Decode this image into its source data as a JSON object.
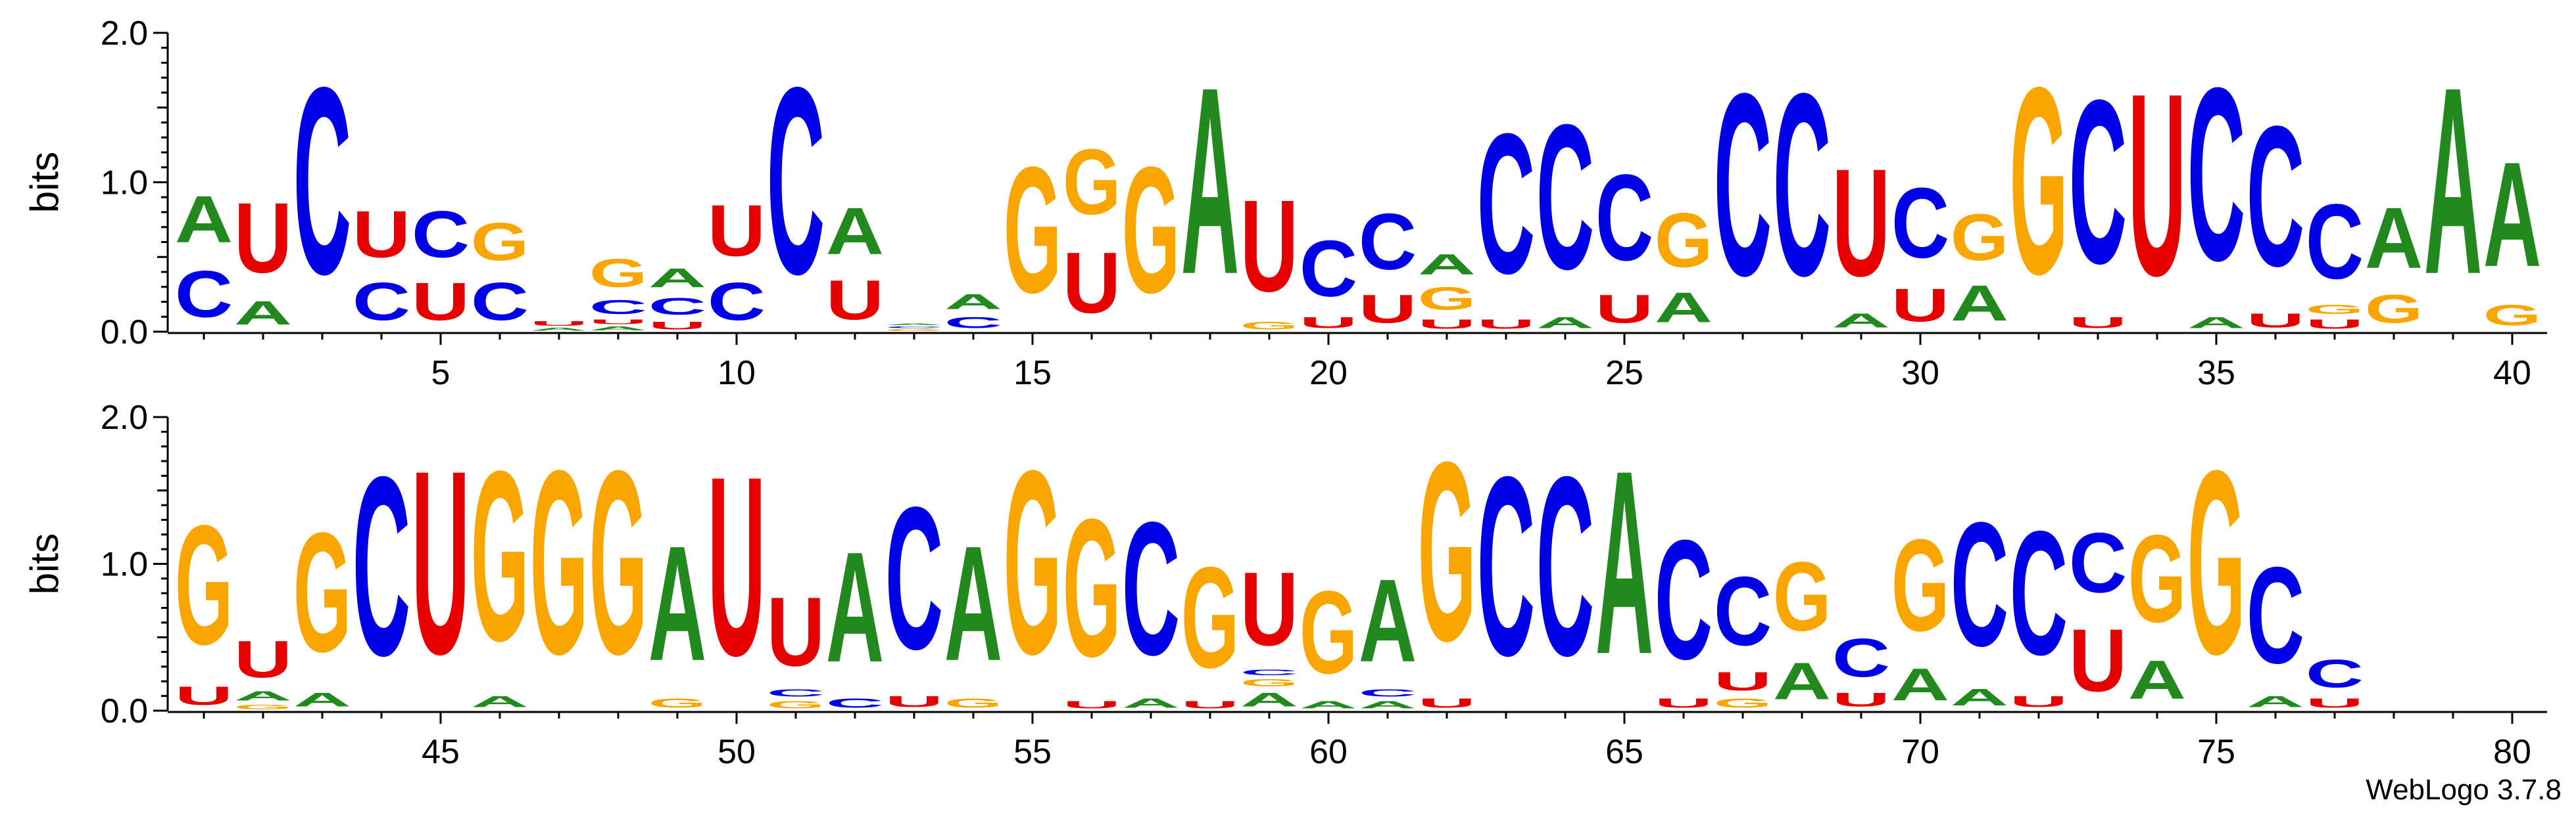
{
  "chart_data": {
    "type": "sequence-logo",
    "ylabel": "bits",
    "ylim": [
      0,
      2
    ],
    "yticks": [
      "0.0",
      "1.0",
      "2.0"
    ],
    "colors": {
      "A": "#21891d",
      "C": "#0000e6",
      "G": "#f9a600",
      "U": "#e60000"
    },
    "rows": [
      {
        "positions": [
          [
            [
              "C",
              0.5
            ],
            [
              "A",
              0.5
            ]
          ],
          [
            [
              "A",
              0.25
            ],
            [
              "U",
              0.75
            ]
          ],
          [
            [
              "C",
              2.0
            ]
          ],
          [
            [
              "C",
              0.4
            ],
            [
              "U",
              0.5
            ]
          ],
          [
            [
              "U",
              0.4
            ],
            [
              "C",
              0.5
            ]
          ],
          [
            [
              "C",
              0.4
            ],
            [
              "G",
              0.4
            ]
          ],
          [
            [
              "A",
              0.03
            ],
            [
              "U",
              0.05
            ]
          ],
          [
            [
              "A",
              0.04
            ],
            [
              "U",
              0.05
            ],
            [
              "C",
              0.15
            ],
            [
              "G",
              0.3
            ]
          ],
          [
            [
              "U",
              0.08
            ],
            [
              "C",
              0.18
            ],
            [
              "A",
              0.2
            ]
          ],
          [
            [
              "C",
              0.4
            ],
            [
              "U",
              0.55
            ]
          ],
          [
            [
              "C",
              2.0
            ]
          ],
          [
            [
              "U",
              0.42
            ],
            [
              "A",
              0.5
            ]
          ],
          [
            [
              "G",
              0.02
            ],
            [
              "C",
              0.02
            ],
            [
              "A",
              0.02
            ]
          ],
          [
            [
              "C",
              0.12
            ],
            [
              "A",
              0.16
            ]
          ],
          [
            [
              "G",
              1.35
            ]
          ],
          [
            [
              "U",
              0.65
            ],
            [
              "G",
              0.7
            ]
          ],
          [
            [
              "G",
              1.35
            ]
          ],
          [
            [
              "A",
              2.0
            ]
          ],
          [
            [
              "G",
              0.08
            ],
            [
              "U",
              0.98
            ]
          ],
          [
            [
              "U",
              0.12
            ],
            [
              "C",
              0.6
            ]
          ],
          [
            [
              "U",
              0.3
            ],
            [
              "C",
              0.6
            ]
          ],
          [
            [
              "U",
              0.1
            ],
            [
              "G",
              0.24
            ],
            [
              "A",
              0.22
            ]
          ],
          [
            [
              "U",
              0.1
            ],
            [
              "C",
              1.5
            ]
          ],
          [
            [
              "A",
              0.12
            ],
            [
              "C",
              1.55
            ]
          ],
          [
            [
              "U",
              0.3
            ],
            [
              "C",
              0.92
            ]
          ],
          [
            [
              "A",
              0.32
            ],
            [
              "G",
              0.58
            ]
          ],
          [
            [
              "C",
              1.95
            ]
          ],
          [
            [
              "C",
              1.95
            ]
          ],
          [
            [
              "A",
              0.15
            ],
            [
              "U",
              1.15
            ]
          ],
          [
            [
              "U",
              0.35
            ],
            [
              "C",
              0.75
            ]
          ],
          [
            [
              "A",
              0.38
            ],
            [
              "G",
              0.5
            ]
          ],
          [
            [
              "G",
              2.0
            ]
          ],
          [
            [
              "U",
              0.12
            ],
            [
              "C",
              1.75
            ]
          ],
          [
            [
              "U",
              1.95
            ]
          ],
          [
            [
              "A",
              0.12
            ],
            [
              "C",
              1.85
            ]
          ],
          [
            [
              "U",
              0.15
            ],
            [
              "C",
              1.5
            ]
          ],
          [
            [
              "U",
              0.1
            ],
            [
              "G",
              0.1
            ],
            [
              "C",
              0.8
            ]
          ],
          [
            [
              "G",
              0.3
            ],
            [
              "A",
              0.65
            ]
          ],
          [
            [
              "A",
              2.0
            ]
          ],
          [
            [
              "G",
              0.22
            ],
            [
              "A",
              1.12
            ]
          ]
        ]
      },
      {
        "positions": [
          [
            [
              "U",
              0.2
            ],
            [
              "G",
              1.3
            ]
          ],
          [
            [
              "G",
              0.05
            ],
            [
              "A",
              0.1
            ],
            [
              "U",
              0.4
            ]
          ],
          [
            [
              "A",
              0.15
            ],
            [
              "G",
              1.3
            ]
          ],
          [
            [
              "C",
              1.95
            ]
          ],
          [
            [
              "U",
              2.0
            ]
          ],
          [
            [
              "A",
              0.12
            ],
            [
              "G",
              1.85
            ]
          ],
          [
            [
              "G",
              2.0
            ]
          ],
          [
            [
              "G",
              2.0
            ]
          ],
          [
            [
              "G",
              0.1
            ],
            [
              "A",
              1.25
            ]
          ],
          [
            [
              "U",
              1.95
            ]
          ],
          [
            [
              "G",
              0.08
            ],
            [
              "C",
              0.08
            ],
            [
              "U",
              0.75
            ]
          ],
          [
            [
              "C",
              0.1
            ],
            [
              "A",
              1.2
            ]
          ],
          [
            [
              "U",
              0.12
            ],
            [
              "C",
              1.55
            ]
          ],
          [
            [
              "G",
              0.1
            ],
            [
              "A",
              1.25
            ]
          ],
          [
            [
              "G",
              2.0
            ]
          ],
          [
            [
              "U",
              0.08
            ],
            [
              "G",
              1.5
            ]
          ],
          [
            [
              "A",
              0.1
            ],
            [
              "C",
              1.45
            ]
          ],
          [
            [
              "U",
              0.08
            ],
            [
              "G",
              1.1
            ]
          ],
          [
            [
              "A",
              0.15
            ],
            [
              "G",
              0.08
            ],
            [
              "C",
              0.06
            ],
            [
              "U",
              0.8
            ]
          ],
          [
            [
              "A",
              0.08
            ],
            [
              "G",
              0.9
            ]
          ],
          [
            [
              "A",
              0.08
            ],
            [
              "C",
              0.08
            ],
            [
              "A",
              0.9
            ]
          ],
          [
            [
              "U",
              0.1
            ],
            [
              "G",
              1.95
            ]
          ],
          [
            [
              "C",
              1.95
            ]
          ],
          [
            [
              "C",
              1.95
            ]
          ],
          [
            [
              "A",
              2.0
            ]
          ],
          [
            [
              "U",
              0.1
            ],
            [
              "C",
              1.3
            ]
          ],
          [
            [
              "G",
              0.1
            ],
            [
              "U",
              0.2
            ],
            [
              "C",
              0.75
            ]
          ],
          [
            [
              "A",
              0.4
            ],
            [
              "G",
              0.75
            ]
          ],
          [
            [
              "U",
              0.15
            ],
            [
              "C",
              0.42
            ]
          ],
          [
            [
              "A",
              0.35
            ],
            [
              "G",
              1.0
            ]
          ],
          [
            [
              "A",
              0.18
            ],
            [
              "C",
              1.35
            ]
          ],
          [
            [
              "U",
              0.12
            ],
            [
              "C",
              1.35
            ]
          ],
          [
            [
              "U",
              0.68
            ],
            [
              "C",
              0.65
            ]
          ],
          [
            [
              "A",
              0.42
            ],
            [
              "G",
              0.95
            ]
          ],
          [
            [
              "G",
              2.0
            ]
          ],
          [
            [
              "A",
              0.12
            ],
            [
              "C",
              1.05
            ]
          ],
          [
            [
              "U",
              0.1
            ],
            [
              "C",
              0.3
            ]
          ]
        ]
      }
    ]
  },
  "footer": {
    "credit": "WebLogo 3.7.8"
  }
}
